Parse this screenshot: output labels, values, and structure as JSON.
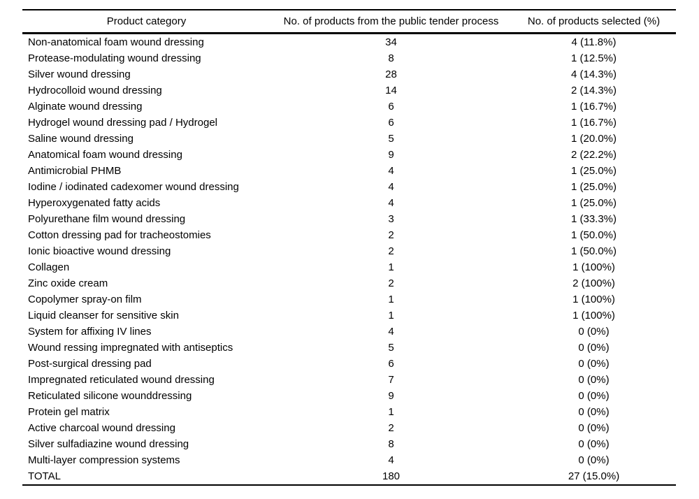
{
  "page": {
    "background_color": "#ffffff",
    "text_color": "#000000",
    "rule_color": "#000000"
  },
  "table": {
    "columns": [
      "Product category",
      "No. of products from the public tender process",
      "No. of products selected (%)"
    ],
    "rows": [
      [
        "Non-anatomical foam wound dressing",
        "34",
        "4 (11.8%)"
      ],
      [
        "Protease-modulating wound dressing",
        "8",
        "1 (12.5%)"
      ],
      [
        "Silver wound dressing",
        "28",
        "4 (14.3%)"
      ],
      [
        "Hydrocolloid wound dressing",
        "14",
        "2 (14.3%)"
      ],
      [
        "Alginate wound dressing",
        "6",
        "1 (16.7%)"
      ],
      [
        "Hydrogel wound dressing pad / Hydrogel",
        "6",
        "1 (16.7%)"
      ],
      [
        "Saline wound dressing",
        "5",
        "1 (20.0%)"
      ],
      [
        "Anatomical foam wound dressing",
        "9",
        "2 (22.2%)"
      ],
      [
        "Antimicrobial PHMB",
        "4",
        "1 (25.0%)"
      ],
      [
        "Iodine / iodinated cadexomer wound dressing",
        "4",
        "1 (25.0%)"
      ],
      [
        "Hyperoxygenated fatty acids",
        "4",
        "1 (25.0%)"
      ],
      [
        "Polyurethane film wound dressing",
        "3",
        "1 (33.3%)"
      ],
      [
        "Cotton dressing pad for tracheostomies",
        "2",
        "1 (50.0%)"
      ],
      [
        "Ionic bioactive wound dressing",
        "2",
        "1 (50.0%)"
      ],
      [
        "Collagen",
        "1",
        "1 (100%)"
      ],
      [
        "Zinc oxide cream",
        "2",
        "2 (100%)"
      ],
      [
        "Copolymer spray-on film",
        "1",
        "1 (100%)"
      ],
      [
        "Liquid cleanser for sensitive skin",
        "1",
        "1 (100%)"
      ],
      [
        "System for affixing IV lines",
        "4",
        "0 (0%)"
      ],
      [
        "Wound ressing impregnated with antiseptics",
        "5",
        "0 (0%)"
      ],
      [
        "Post-surgical dressing pad",
        "6",
        "0 (0%)"
      ],
      [
        "Impregnated reticulated wound dressing",
        "7",
        "0 (0%)"
      ],
      [
        "Reticulated silicone wounddressing",
        "9",
        "0 (0%)"
      ],
      [
        "Protein gel matrix",
        "1",
        "0 (0%)"
      ],
      [
        "Active charcoal wound dressing",
        "2",
        "0 (0%)"
      ],
      [
        "Silver sulfadiazine wound dressing",
        "8",
        "0 (0%)"
      ],
      [
        "Multi-layer compression systems",
        "4",
        "0 (0%)"
      ],
      [
        "TOTAL",
        "180",
        "27 (15.0%)"
      ]
    ],
    "total_label": "TOTAL"
  }
}
